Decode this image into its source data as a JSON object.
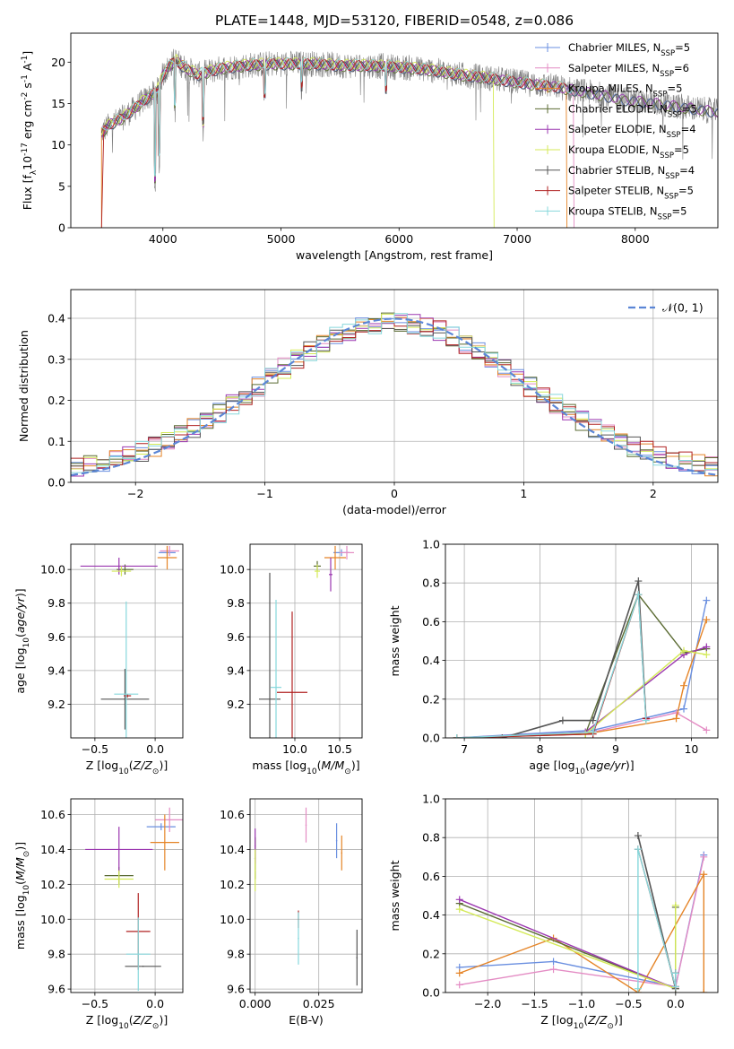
{
  "title": "PLATE=1448, MJD=53120, FIBERID=0548, z=0.086",
  "colors": {
    "Chabrier MILES": "#6a8fe0",
    "Salpeter MILES": "#e48cc4",
    "Kroupa MILES": "#e58427",
    "Chabrier ELODIE": "#5b6b33",
    "Salpeter ELODIE": "#9b37b0",
    "Kroupa ELODIE": "#d4ea58",
    "Chabrier STELIB": "#555555",
    "Salpeter STELIB": "#b02222",
    "Kroupa STELIB": "#87d8dc"
  },
  "chart_data": [
    {
      "id": "spectrum",
      "type": "line",
      "xlabel": "wavelength [Angstrom, rest frame]",
      "ylabel": "Flux [f$_\\lambda$10$^{-17}$ erg cm$^{-2}$ s$^{-1}$ A$^{-1}$]",
      "xlim": [
        3220,
        8700
      ],
      "ylim": [
        0,
        23.5
      ],
      "xticks": [
        4000,
        5000,
        6000,
        7000,
        8000
      ],
      "yticks": [
        0,
        5,
        10,
        15,
        20
      ],
      "grid": false,
      "legend_position": "top-right",
      "series": [
        {
          "name": "Chabrier MILES, N$_{SSP}$=5",
          "label": "Chabrier MILES, N",
          "sub": "SSP",
          "tail": "=5"
        },
        {
          "name": "Salpeter MILES, N$_{SSP}$=6",
          "label": "Salpeter MILES, N",
          "sub": "SSP",
          "tail": "=6"
        },
        {
          "name": "Kroupa MILES, N$_{SSP}$=5",
          "label": "Kroupa MILES, N",
          "sub": "SSP",
          "tail": "=5"
        },
        {
          "name": "Chabrier ELODIE, N$_{SSP}$=5",
          "label": "Chabrier ELODIE, N",
          "sub": "SSP",
          "tail": "=5"
        },
        {
          "name": "Salpeter ELODIE, N$_{SSP}$=4",
          "label": "Salpeter ELODIE, N",
          "sub": "SSP",
          "tail": "=4"
        },
        {
          "name": "Kroupa ELODIE, N$_{SSP}$=5",
          "label": "Kroupa ELODIE, N",
          "sub": "SSP",
          "tail": "=5"
        },
        {
          "name": "Chabrier STELIB, N$_{SSP}$=4",
          "label": "Chabrier STELIB, N",
          "sub": "SSP",
          "tail": "=4"
        },
        {
          "name": "Salpeter STELIB, N$_{SSP}$=5",
          "label": "Salpeter STELIB, N",
          "sub": "SSP",
          "tail": "=5"
        },
        {
          "name": "Kroupa STELIB, N$_{SSP}$=5",
          "label": "Kroupa STELIB, N",
          "sub": "SSP",
          "tail": "=5"
        }
      ],
      "data_series_note": "",
      "spectrum_shape": {
        "x": [
          3480,
          3550,
          3650,
          3750,
          3850,
          3950,
          4000,
          4100,
          4200,
          4300,
          4500,
          4700,
          4900,
          5100,
          5300,
          5500,
          5700,
          5900,
          6100,
          6300,
          6500,
          6700,
          6900,
          7100,
          7300,
          7500,
          7700,
          7900,
          8100,
          8300,
          8500,
          8700
        ],
        "y": [
          11.5,
          12.5,
          13.2,
          14.3,
          15.5,
          16.5,
          18.5,
          20.3,
          19.2,
          18.5,
          19.3,
          19.6,
          19.8,
          19.8,
          19.8,
          19.6,
          19.6,
          19.5,
          19.3,
          19.0,
          18.5,
          18.2,
          17.8,
          17.4,
          17.1,
          16.6,
          16.1,
          15.5,
          15.2,
          14.8,
          14.4,
          14.0
        ]
      },
      "absorption_lines": [
        {
          "x": 3934,
          "depth": 12.0
        },
        {
          "x": 3968,
          "depth": 9.5
        },
        {
          "x": 4102,
          "depth": 6.0
        },
        {
          "x": 4340,
          "depth": 7.0
        },
        {
          "x": 4861,
          "depth": 4.0
        },
        {
          "x": 5175,
          "depth": 3.0
        },
        {
          "x": 5890,
          "depth": 3.0
        }
      ]
    },
    {
      "id": "residual-hist",
      "type": "histogram",
      "xlabel": "(data-model)/error",
      "ylabel": "Normed distribution",
      "xlim": [
        -2.5,
        2.5
      ],
      "ylim": [
        0,
        0.47
      ],
      "xticks": [
        -2,
        -1,
        0,
        1,
        2
      ],
      "yticks": [
        0.0,
        0.1,
        0.2,
        0.3,
        0.4
      ],
      "grid": true,
      "legend_position": "top-right",
      "reference_curve": {
        "name": "$\\mathcal{N}(0,1)$",
        "label": "𝒩(0, 1)",
        "color": "#5b86d6",
        "mu": 0,
        "sigma": 1
      },
      "bin_width": 0.1,
      "hist_envelope_center": 0.0
    },
    {
      "id": "z-vs-age",
      "type": "errorbar",
      "xlabel": "Z [log$_{10}$($Z/Z_\\odot$)]",
      "ylabel": "age  [log$_{10}$($age/yr$)]",
      "xlim": [
        -0.7,
        0.23
      ],
      "ylim": [
        9.0,
        10.15
      ],
      "xticks": [
        -0.5,
        0.0
      ],
      "yticks": [
        9.2,
        9.4,
        9.6,
        9.8,
        10.0
      ],
      "grid": true,
      "points": [
        {
          "model": "Chabrier MILES",
          "x": 0.1,
          "y": 10.1,
          "xerr": 0.07,
          "yerr": 0.02
        },
        {
          "model": "Salpeter MILES",
          "x": 0.12,
          "y": 10.11,
          "xerr": 0.08,
          "yerr": 0.03
        },
        {
          "model": "Kroupa MILES",
          "x": 0.1,
          "y": 10.07,
          "xerr": 0.08,
          "yerr": 0.07
        },
        {
          "model": "Chabrier ELODIE",
          "x": -0.25,
          "y": 10.0,
          "xerr": 0.07,
          "yerr": 0.03
        },
        {
          "model": "Salpeter ELODIE",
          "x": -0.3,
          "y": 10.02,
          "xerr": 0.32,
          "yerr": 0.05
        },
        {
          "model": "Kroupa ELODIE",
          "x": -0.28,
          "y": 9.99,
          "xerr": 0.08,
          "yerr": 0.03
        },
        {
          "model": "Chabrier STELIB",
          "x": -0.25,
          "y": 9.23,
          "xerr": 0.2,
          "yerr": 0.18
        },
        {
          "model": "Salpeter STELIB",
          "x": -0.23,
          "y": 9.25,
          "xerr": 0.03,
          "yerr": 0.01
        },
        {
          "model": "Kroupa STELIB",
          "x": -0.24,
          "y": 9.26,
          "xerr": 0.1,
          "yerr": 0.55
        }
      ]
    },
    {
      "id": "mass-vs-age",
      "type": "errorbar",
      "xlabel": "mass [log$_{10}$($M/M_\\odot$)]",
      "ylabel": "",
      "xlim": [
        9.5,
        10.75
      ],
      "ylim": [
        9.0,
        10.15
      ],
      "xticks": [
        10.0,
        10.5
      ],
      "yticks": [
        9.2,
        9.4,
        9.6,
        9.8,
        10.0
      ],
      "grid": true,
      "points": [
        {
          "model": "Chabrier MILES",
          "x": 10.52,
          "y": 10.1,
          "xerr": 0.09,
          "yerr": 0.02
        },
        {
          "model": "Salpeter MILES",
          "x": 10.58,
          "y": 10.1,
          "xerr": 0.08,
          "yerr": 0.04
        },
        {
          "model": "Kroupa MILES",
          "x": 10.45,
          "y": 10.07,
          "xerr": 0.12,
          "yerr": 0.07
        },
        {
          "model": "Chabrier ELODIE",
          "x": 10.25,
          "y": 10.02,
          "xerr": 0.04,
          "yerr": 0.03
        },
        {
          "model": "Salpeter ELODIE",
          "x": 10.4,
          "y": 9.97,
          "xerr": 0.02,
          "yerr": 0.1
        },
        {
          "model": "Kroupa ELODIE",
          "x": 10.25,
          "y": 9.99,
          "xerr": 0.03,
          "yerr": 0.04
        },
        {
          "model": "Chabrier STELIB",
          "x": 9.72,
          "y": 9.23,
          "xerr": 0.12,
          "yerr": 0.75
        },
        {
          "model": "Salpeter STELIB",
          "x": 9.97,
          "y": 9.27,
          "xerr": 0.17,
          "yerr": 0.48
        },
        {
          "model": "Kroupa STELIB",
          "x": 9.79,
          "y": 9.3,
          "xerr": 0.06,
          "yerr": 0.52
        }
      ]
    },
    {
      "id": "age-vs-weight",
      "type": "line",
      "xlabel": "age  [log$_{10}$($age/yr$)]",
      "ylabel": "mass weight",
      "xlim": [
        6.75,
        10.35
      ],
      "ylim": [
        0,
        1.0
      ],
      "xticks": [
        7,
        8,
        9,
        10
      ],
      "yticks": [
        0.0,
        0.2,
        0.4,
        0.6,
        0.8,
        1.0
      ],
      "grid": true,
      "series": [
        {
          "model": "Chabrier MILES",
          "x": [
            6.9,
            8.7,
            9.9,
            10.2
          ],
          "y": [
            0.0,
            0.04,
            0.15,
            0.71
          ]
        },
        {
          "model": "Salpeter MILES",
          "x": [
            6.9,
            8.7,
            9.8,
            10.2
          ],
          "y": [
            0.0,
            0.03,
            0.13,
            0.04
          ]
        },
        {
          "model": "Kroupa MILES",
          "x": [
            6.9,
            8.6,
            9.8,
            9.9,
            10.2
          ],
          "y": [
            0.0,
            0.02,
            0.1,
            0.27,
            0.61
          ]
        },
        {
          "model": "Chabrier ELODIE",
          "x": [
            6.9,
            8.6,
            9.3,
            9.9,
            10.2
          ],
          "y": [
            0.0,
            0.02,
            0.74,
            0.44,
            0.46
          ]
        },
        {
          "model": "Salpeter ELODIE",
          "x": [
            6.9,
            8.6,
            9.9,
            10.2
          ],
          "y": [
            0.0,
            0.03,
            0.43,
            0.47
          ]
        },
        {
          "model": "Kroupa ELODIE",
          "x": [
            6.9,
            8.6,
            9.9,
            10.2
          ],
          "y": [
            0.0,
            0.02,
            0.45,
            0.43
          ]
        },
        {
          "model": "Chabrier STELIB",
          "x": [
            7.5,
            8.3,
            8.7,
            9.3,
            9.4
          ],
          "y": [
            0.0,
            0.09,
            0.09,
            0.81,
            0.1
          ]
        },
        {
          "model": "Salpeter STELIB",
          "x": [
            6.9,
            8.7,
            9.3,
            9.4
          ],
          "y": [
            0.0,
            0.02,
            0.74,
            0.1
          ]
        },
        {
          "model": "Kroupa STELIB",
          "x": [
            6.9,
            8.7,
            9.3,
            9.4
          ],
          "y": [
            0.0,
            0.03,
            0.74,
            0.09
          ]
        }
      ]
    },
    {
      "id": "z-vs-mass",
      "type": "errorbar",
      "xlabel": "Z [log$_{10}$($Z/Z_\\odot$)]",
      "ylabel": "mass [log$_{10}$($M/M_\\odot$)]",
      "xlim": [
        -0.7,
        0.23
      ],
      "ylim": [
        9.58,
        10.69
      ],
      "xticks": [
        -0.5,
        0.0
      ],
      "yticks": [
        9.6,
        9.8,
        10.0,
        10.2,
        10.4,
        10.6
      ],
      "grid": true,
      "points": [
        {
          "model": "Chabrier MILES",
          "x": 0.05,
          "y": 10.53,
          "xerr": 0.12,
          "yerr": 0.02
        },
        {
          "model": "Salpeter MILES",
          "x": 0.12,
          "y": 10.57,
          "xerr": 0.12,
          "yerr": 0.07
        },
        {
          "model": "Kroupa MILES",
          "x": 0.08,
          "y": 10.44,
          "xerr": 0.12,
          "yerr": 0.16
        },
        {
          "model": "Chabrier ELODIE",
          "x": -0.3,
          "y": 10.25,
          "xerr": 0.12,
          "yerr": 0.05
        },
        {
          "model": "Salpeter ELODIE",
          "x": -0.3,
          "y": 10.4,
          "xerr": 0.28,
          "yerr": 0.13
        },
        {
          "model": "Kroupa ELODIE",
          "x": -0.3,
          "y": 10.23,
          "xerr": 0.12,
          "yerr": 0.05
        },
        {
          "model": "Chabrier STELIB",
          "x": -0.1,
          "y": 9.73,
          "xerr": 0.15,
          "yerr": 0.0
        },
        {
          "model": "Salpeter STELIB",
          "x": -0.14,
          "y": 9.93,
          "xerr": 0.1,
          "yerr": 0.22
        },
        {
          "model": "Kroupa STELIB",
          "x": -0.14,
          "y": 9.8,
          "xerr": 0.1,
          "yerr": 0.21
        }
      ]
    },
    {
      "id": "ebv-vs-mass",
      "type": "errorbar",
      "xlabel": "E(B-V)",
      "ylabel": "",
      "xlim": [
        -0.002,
        0.042
      ],
      "ylim": [
        9.58,
        10.69
      ],
      "xticks": [
        0.0,
        0.025
      ],
      "xtick_labels": [
        "0.000",
        "0.025"
      ],
      "yticks": [
        9.6,
        9.8,
        10.0,
        10.2,
        10.4,
        10.6
      ],
      "grid": true,
      "points": [
        {
          "model": "Chabrier MILES",
          "x": 0.032,
          "y": 10.45,
          "xerr": 0.0,
          "yerr": 0.1
        },
        {
          "model": "Salpeter MILES",
          "x": 0.02,
          "y": 10.54,
          "xerr": 0.0,
          "yerr": 0.1
        },
        {
          "model": "Kroupa MILES",
          "x": 0.034,
          "y": 10.38,
          "xerr": 0.0,
          "yerr": 0.1
        },
        {
          "model": "Chabrier ELODIE",
          "x": 0.0,
          "y": 10.35,
          "xerr": 0.0,
          "yerr": 0.12
        },
        {
          "model": "Salpeter ELODIE",
          "x": 0.0,
          "y": 10.42,
          "xerr": 0.0,
          "yerr": 0.1
        },
        {
          "model": "Kroupa ELODIE",
          "x": 0.0,
          "y": 10.28,
          "xerr": 0.0,
          "yerr": 0.12
        },
        {
          "model": "Chabrier STELIB",
          "x": 0.04,
          "y": 9.78,
          "xerr": 0.0,
          "yerr": 0.16
        },
        {
          "model": "Salpeter STELIB",
          "x": 0.017,
          "y": 10.0,
          "xerr": 0.0,
          "yerr": 0.05
        },
        {
          "model": "Kroupa STELIB",
          "x": 0.017,
          "y": 9.89,
          "xerr": 0.0,
          "yerr": 0.15
        }
      ]
    },
    {
      "id": "z-vs-weight",
      "type": "line",
      "xlabel": "Z [log$_{10}$($Z/Z_\\odot$)]",
      "ylabel": "mass weight",
      "xlim": [
        -2.45,
        0.45
      ],
      "ylim": [
        0,
        1.0
      ],
      "xticks": [
        -2.0,
        -1.5,
        -1.0,
        -0.5,
        0.0
      ],
      "yticks": [
        0.0,
        0.2,
        0.4,
        0.6,
        0.8,
        1.0
      ],
      "grid": true,
      "series": [
        {
          "model": "Chabrier MILES",
          "x": [
            -2.3,
            -1.3,
            0.0,
            0.3
          ],
          "y": [
            0.13,
            0.16,
            0.03,
            0.71
          ]
        },
        {
          "model": "Salpeter MILES",
          "x": [
            -2.3,
            -1.3,
            0.0,
            0.3
          ],
          "y": [
            0.04,
            0.12,
            0.03,
            0.7
          ]
        },
        {
          "model": "Kroupa MILES",
          "x": [
            -2.3,
            -1.3,
            -0.4,
            0.3,
            0.3
          ],
          "y": [
            0.1,
            0.28,
            0.0,
            0.61,
            0.0
          ]
        },
        {
          "model": "Chabrier ELODIE",
          "x": [
            -2.3,
            0.0,
            0.0
          ],
          "y": [
            0.46,
            0.02,
            0.44
          ]
        },
        {
          "model": "Salpeter ELODIE",
          "x": [
            -2.3,
            0.0,
            0.0
          ],
          "y": [
            0.48,
            0.02,
            0.1
          ]
        },
        {
          "model": "Kroupa ELODIE",
          "x": [
            -2.3,
            0.0,
            0.0
          ],
          "y": [
            0.43,
            0.02,
            0.45
          ]
        },
        {
          "model": "Chabrier STELIB",
          "x": [
            -0.4,
            0.0,
            0.0
          ],
          "y": [
            0.81,
            0.02,
            0.1
          ]
        },
        {
          "model": "Salpeter STELIB",
          "x": [
            -0.4,
            0.0,
            0.0
          ],
          "y": [
            0.74,
            0.03,
            0.1
          ]
        },
        {
          "model": "Kroupa STELIB",
          "x": [
            -0.4,
            -0.4,
            0.0,
            0.0
          ],
          "y": [
            0.02,
            0.74,
            0.03,
            0.1
          ]
        }
      ]
    }
  ]
}
